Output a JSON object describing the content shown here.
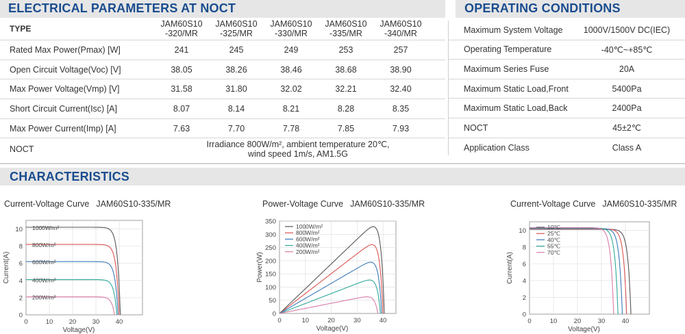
{
  "electrical": {
    "title": "ELECTRICAL PARAMETERS AT NOCT",
    "type_label": "TYPE",
    "models": [
      [
        "JAM60S10",
        "-320/MR"
      ],
      [
        "JAM60S10",
        "-325/MR"
      ],
      [
        "JAM60S10",
        "-330/MR"
      ],
      [
        "JAM60S10",
        "-335/MR"
      ],
      [
        "JAM60S10",
        "-340/MR"
      ]
    ],
    "rows": [
      {
        "label": "Rated Max Power(Pmax) [W]",
        "values": [
          "241",
          "245",
          "249",
          "253",
          "257"
        ]
      },
      {
        "label": "Open Circuit Voltage(Voc) [V]",
        "values": [
          "38.05",
          "38.26",
          "38.46",
          "38.68",
          "38.90"
        ]
      },
      {
        "label": "Max Power Voltage(Vmp) [V]",
        "values": [
          "31.58",
          "31.80",
          "32.02",
          "32.21",
          "32.40"
        ]
      },
      {
        "label": "Short Circuit Current(Isc) [A]",
        "values": [
          "8.07",
          "8.14",
          "8.21",
          "8.28",
          "8.35"
        ]
      },
      {
        "label": "Max Power Current(Imp) [A]",
        "values": [
          "7.63",
          "7.70",
          "7.78",
          "7.85",
          "7.93"
        ]
      }
    ],
    "noct_label": "NOCT",
    "noct_line1": "Irradiance 800W/m², ambient temperature 20℃,",
    "noct_line2": "wind speed 1m/s, AM1.5G"
  },
  "operating": {
    "title": "OPERATING CONDITIONS",
    "rows": [
      {
        "label": "Maximum System Voltage",
        "value": "1000V/1500V DC(IEC)"
      },
      {
        "label": "Operating Temperature",
        "value": "-40℃~+85℃"
      },
      {
        "label": "Maximum Series Fuse",
        "value": "20A"
      },
      {
        "label": "Maximum Static Load,Front",
        "value": "5400Pa"
      },
      {
        "label": "Maximum Static Load,Back",
        "value": "2400Pa"
      },
      {
        "label": "NOCT",
        "value": "45±2℃"
      },
      {
        "label": "Application Class",
        "value": "Class A"
      }
    ]
  },
  "characteristics": {
    "title": "CHARACTERISTICS"
  },
  "colors": {
    "heading": "#1a4d8f",
    "band": "#e6e6e6"
  },
  "chart_data": [
    {
      "type": "line",
      "title": "Current-Voltage Curve",
      "model": "JAM60S10-335/MR",
      "xlabel": "Voltage(V)",
      "ylabel": "Current(A)",
      "xlim": [
        0,
        50
      ],
      "ylim": [
        0,
        11
      ],
      "xticks": [
        0,
        10,
        20,
        30,
        40
      ],
      "yticks": [
        0,
        2,
        4,
        6,
        8,
        10
      ],
      "series": [
        {
          "name": "1000W/m²",
          "isc": 10.2,
          "voc": 40.5,
          "color": "#555555"
        },
        {
          "name": "800W/m²",
          "isc": 8.2,
          "voc": 40.0,
          "color": "#d9534f"
        },
        {
          "name": "600W/m²",
          "isc": 6.2,
          "voc": 39.5,
          "color": "#3a7ab8"
        },
        {
          "name": "400W/m²",
          "isc": 4.1,
          "voc": 39.0,
          "color": "#2fa89a"
        },
        {
          "name": "200W/m²",
          "isc": 2.1,
          "voc": 38.0,
          "color": "#d87aa6"
        }
      ]
    },
    {
      "type": "line",
      "title": "Power-Voltage Curve",
      "model": "JAM60S10-335/MR",
      "xlabel": "Voltage(V)",
      "ylabel": "Power(W)",
      "xlim": [
        0,
        45
      ],
      "ylim": [
        0,
        350
      ],
      "xticks": [
        0,
        10,
        20,
        30,
        40
      ],
      "yticks": [
        0,
        50,
        100,
        150,
        200,
        250,
        300,
        350
      ],
      "series": [
        {
          "name": "1000W/m²",
          "isc": 10.2,
          "voc": 40.5,
          "color": "#555555"
        },
        {
          "name": "800W/m²",
          "isc": 8.2,
          "voc": 40.0,
          "color": "#d9534f"
        },
        {
          "name": "600W/m²",
          "isc": 6.2,
          "voc": 39.5,
          "color": "#3a7ab8"
        },
        {
          "name": "400W/m²",
          "isc": 4.1,
          "voc": 39.0,
          "color": "#2fa89a"
        },
        {
          "name": "200W/m²",
          "isc": 2.1,
          "voc": 38.0,
          "color": "#d87aa6"
        }
      ]
    },
    {
      "type": "line",
      "title": "Current-Voltage Curve",
      "model": "JAM60S10-335/MR",
      "xlabel": "Voltage(V)",
      "ylabel": "Current(A)",
      "xlim": [
        0,
        50
      ],
      "ylim": [
        0,
        11
      ],
      "xticks": [
        0,
        10,
        20,
        30,
        40
      ],
      "yticks": [
        0,
        2,
        4,
        6,
        8,
        10
      ],
      "series": [
        {
          "name": "10℃",
          "isc": 10.1,
          "voc": 42.3,
          "color": "#555555"
        },
        {
          "name": "25℃",
          "isc": 10.15,
          "voc": 40.5,
          "color": "#d9534f"
        },
        {
          "name": "40℃",
          "isc": 10.2,
          "voc": 38.7,
          "color": "#3a7ab8"
        },
        {
          "name": "55℃",
          "isc": 10.25,
          "voc": 36.9,
          "color": "#2fa89a"
        },
        {
          "name": "70℃",
          "isc": 10.3,
          "voc": 35.1,
          "color": "#d87aa6"
        }
      ]
    }
  ]
}
